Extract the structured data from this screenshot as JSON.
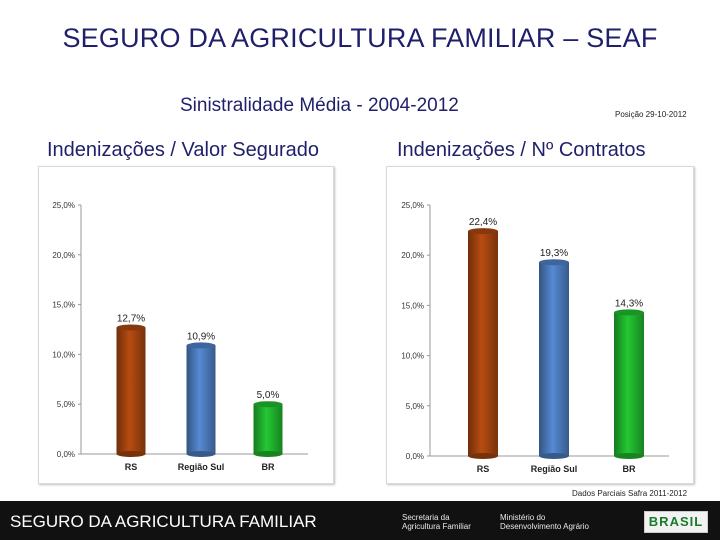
{
  "header": {
    "title": "SEGURO DA AGRICULTURA FAMILIAR – SEAF",
    "subtitle": "Sinistralidade Média - 2004-2012",
    "position_note": "Posição 29-10-2012"
  },
  "columns": {
    "left_heading": "Indenizações / Valor Segurado",
    "right_heading": "Indenizações / Nº Contratos"
  },
  "source_note": "Dados Parciais Safra 2011-2012",
  "footer": {
    "title": "SEGURO DA AGRICULTURA FAMILIAR",
    "logo_left": [
      "Secretaria da",
      "Agricultura Familiar"
    ],
    "logo_right": [
      "Ministério do",
      "Desenvolvimento Agrário"
    ],
    "brand": "BRASIL"
  },
  "chart_data": [
    {
      "type": "bar",
      "title": "Indenizações / Valor Segurado",
      "categories": [
        "RS",
        "Região Sul",
        "BR"
      ],
      "values": [
        12.7,
        10.9,
        5.0
      ],
      "value_labels": [
        "12,7%",
        "10,9%",
        "5,0%"
      ],
      "colors": [
        "#a0420f",
        "#4a78b8",
        "#1fae2c"
      ],
      "ylim": [
        0,
        25
      ],
      "yticks": [
        "0,0%",
        "5,0%",
        "10,0%",
        "15,0%",
        "20,0%",
        "25,0%"
      ],
      "grid": false
    },
    {
      "type": "bar",
      "title": "Indenizações / Nº Contratos",
      "categories": [
        "RS",
        "Região Sul",
        "BR"
      ],
      "values": [
        22.4,
        19.3,
        14.3
      ],
      "value_labels": [
        "22,4%",
        "19,3%",
        "14,3%"
      ],
      "colors": [
        "#a0420f",
        "#4a78b8",
        "#1fae2c"
      ],
      "ylim": [
        0,
        25
      ],
      "yticks": [
        "0,0%",
        "5,0%",
        "10,0%",
        "15,0%",
        "20,0%",
        "25,0%"
      ],
      "grid": false
    }
  ]
}
